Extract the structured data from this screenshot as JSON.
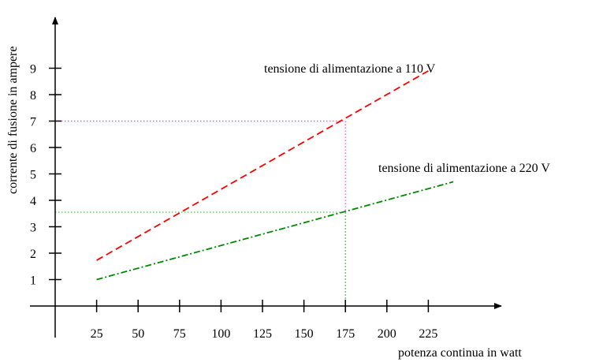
{
  "chart_data": {
    "type": "line",
    "xlabel": "potenza continua in watt",
    "ylabel": "corrente di fusione in ampere",
    "x_ticks": [
      "25",
      "50",
      "75",
      "100",
      "125",
      "150",
      "175",
      "200",
      "225"
    ],
    "y_ticks": [
      "1",
      "2",
      "3",
      "4",
      "5",
      "6",
      "7",
      "8",
      "9"
    ],
    "xlim": [
      0,
      270
    ],
    "ylim": [
      -1,
      11
    ],
    "grid": false,
    "series": [
      {
        "name": "tensione di alimentazione a 110 V",
        "color": "#ff0000",
        "dash": "dashed",
        "x": [
          25,
          225
        ],
        "y": [
          1.73,
          8.9
        ]
      },
      {
        "name": "tensione di alimentazione a 220 V",
        "color": "#008800",
        "dash": "dash-dot",
        "x": [
          25,
          240
        ],
        "y": [
          1.0,
          4.7
        ]
      }
    ],
    "guides": [
      {
        "x": 175,
        "y": 7.0,
        "color": "#ff44ff"
      },
      {
        "x": 175,
        "y": 3.55,
        "color": "#33cc33"
      }
    ]
  }
}
